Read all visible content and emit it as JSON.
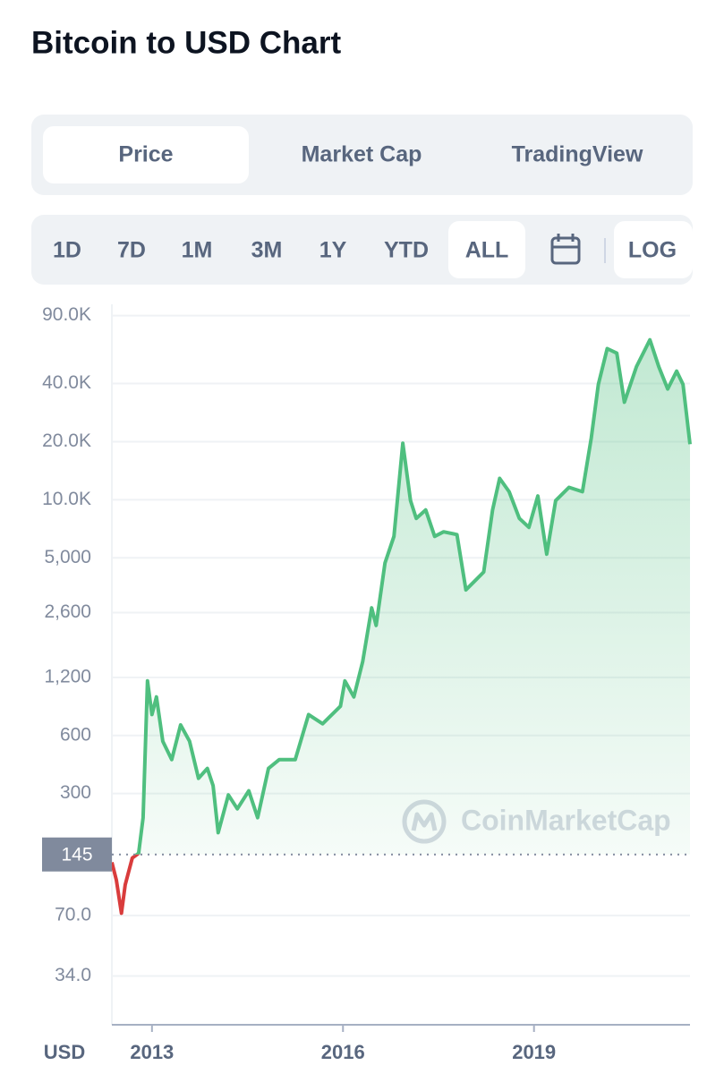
{
  "title": "Bitcoin to USD Chart",
  "tabs": [
    {
      "label": "Price",
      "active": true
    },
    {
      "label": "Market Cap",
      "active": false
    },
    {
      "label": "TradingView",
      "active": false
    }
  ],
  "ranges": [
    {
      "label": "1D",
      "active": false
    },
    {
      "label": "7D",
      "active": false
    },
    {
      "label": "1M",
      "active": false
    },
    {
      "label": "3M",
      "active": false
    },
    {
      "label": "1Y",
      "active": false
    },
    {
      "label": "YTD",
      "active": false
    },
    {
      "label": "ALL",
      "active": true
    }
  ],
  "log_button": {
    "label": "LOG",
    "active": true
  },
  "watermark": "CoinMarketCap",
  "chart_data": {
    "type": "line",
    "x_axis_label": "USD",
    "log_scale": true,
    "grid": true,
    "color": "#4fbf7f",
    "down_color": "#d93c3c",
    "baseline": 145,
    "xlim": [
      2012.37,
      2021.45
    ],
    "xticks": [
      2013,
      2016,
      2019
    ],
    "ylim": [
      19,
      103000
    ],
    "yticks": [
      {
        "value": 90000,
        "label": "90.0K"
      },
      {
        "value": 40000,
        "label": "40.0K"
      },
      {
        "value": 20000,
        "label": "20.0K"
      },
      {
        "value": 10000,
        "label": "10.0K"
      },
      {
        "value": 5000,
        "label": "5,000"
      },
      {
        "value": 2600,
        "label": "2,600"
      },
      {
        "value": 1200,
        "label": "1,200"
      },
      600,
      300,
      {
        "value": 70,
        "label": "70.0"
      },
      {
        "value": 34,
        "label": "34.0"
      }
    ],
    "x": [
      2012.37,
      2012.44,
      2012.52,
      2012.58,
      2012.69,
      2012.79,
      2012.86,
      2012.93,
      2013.0,
      2013.07,
      2013.17,
      2013.31,
      2013.45,
      2013.59,
      2013.73,
      2013.87,
      2013.96,
      2014.04,
      2014.2,
      2014.34,
      2014.52,
      2014.66,
      2014.83,
      2015.0,
      2015.25,
      2015.46,
      2015.68,
      2015.96,
      2016.03,
      2016.17,
      2016.31,
      2016.45,
      2016.52,
      2016.66,
      2016.8,
      2016.94,
      2017.06,
      2017.15,
      2017.3,
      2017.44,
      2017.58,
      2017.79,
      2017.93,
      2018.07,
      2018.21,
      2018.35,
      2018.46,
      2018.61,
      2018.77,
      2018.92,
      2019.06,
      2019.2,
      2019.34,
      2019.55,
      2019.76,
      2019.9,
      2020.01,
      2020.15,
      2020.3,
      2020.42,
      2020.61,
      2020.82,
      2020.96,
      2021.1,
      2021.24,
      2021.34,
      2021.39,
      2021.45
    ],
    "values": [
      132,
      107,
      72,
      101,
      139,
      147,
      225,
      1150,
      770,
      950,
      560,
      450,
      680,
      560,
      360,
      405,
      330,
      188,
      295,
      250,
      310,
      225,
      405,
      450,
      450,
      770,
      690,
      850,
      1150,
      950,
      1450,
      2750,
      2230,
      4700,
      6460,
      19600,
      9900,
      8000,
      8850,
      6460,
      6820,
      6600,
      3410,
      3790,
      4220,
      8850,
      12900,
      11000,
      8000,
      7190,
      10450,
      5220,
      9900,
      11600,
      11000,
      20900,
      39600,
      60700,
      57500,
      32000,
      49000,
      67400,
      49000,
      37500,
      46400,
      39600,
      28800,
      19400
    ]
  }
}
